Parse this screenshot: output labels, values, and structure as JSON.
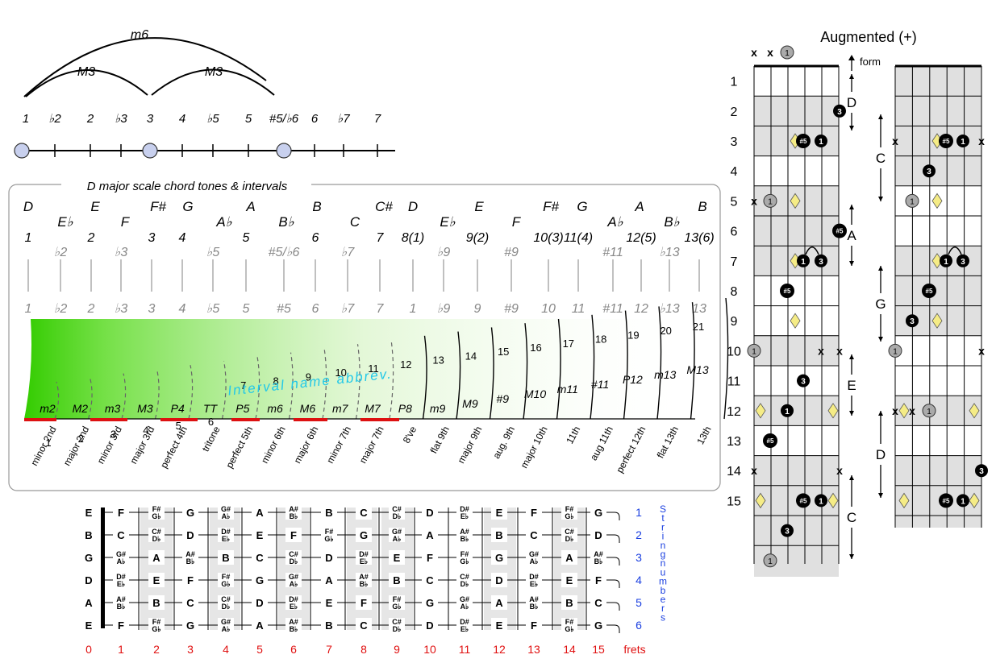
{
  "arcs": {
    "large": "m6",
    "left": "M3",
    "right": "M3"
  },
  "degree_line": {
    "labels": [
      "1",
      "♭2",
      "2",
      "♭3",
      "3",
      "4",
      "♭5",
      "5",
      "#5/♭6",
      "6",
      "♭7",
      "7"
    ],
    "marked": [
      "1",
      "3",
      "#5/♭6"
    ]
  },
  "scale_panel": {
    "title": "D major scale chord tones & intervals",
    "notes_top": [
      "D",
      "E♭",
      "E",
      "F",
      "F#",
      "G",
      "A♭",
      "A",
      "B♭",
      "B",
      "C",
      "C#",
      "D",
      "E♭",
      "E",
      "F",
      "F#",
      "G",
      "A♭",
      "A",
      "B♭",
      "B"
    ],
    "degrees_main": [
      "1",
      "♭2",
      "2",
      "♭3",
      "3",
      "4",
      "♭5",
      "5",
      "#5/♭6",
      "6",
      "♭7",
      "7",
      "8(1)",
      "♭9",
      "9(2)",
      "#9",
      "10(3)",
      "11(4)",
      "#11",
      "12(5)",
      "♭13",
      "13(6)"
    ],
    "degrees_row": [
      "1",
      "♭2",
      "2",
      "♭3",
      "3",
      "4",
      "♭5",
      "5",
      "#5",
      "6",
      "♭7",
      "7",
      "1",
      "♭9",
      "9",
      "#9",
      "10",
      "11",
      "#11",
      "12",
      "♭13",
      "13"
    ],
    "semitones": [
      "1",
      "2",
      "3",
      "4",
      "5",
      "6",
      "7",
      "8",
      "9",
      "10",
      "11",
      "12",
      "13",
      "14",
      "15",
      "16",
      "17",
      "18",
      "19",
      "20",
      "21"
    ],
    "abbrevs": [
      "m2",
      "M2",
      "m3",
      "M3",
      "P4",
      "TT",
      "P5",
      "m6",
      "M6",
      "m7",
      "M7",
      "P8",
      "m9",
      "M9",
      "#9",
      "M10",
      "m11",
      "#11",
      "P12",
      "m13",
      "M13"
    ],
    "names": [
      "minor 2nd",
      "major 2nd",
      "minor 3rd",
      "major 3rd",
      "perfect 4th",
      "tritone",
      "perfect 5th",
      "minor 6th",
      "major 6th",
      "minor 7th",
      "major 7th",
      "8've",
      "flat 9th",
      "major 9th",
      "aug. 9th",
      "major 10th",
      "11th",
      "aug 11th",
      "perfect 12th",
      "flat 13th",
      "13th"
    ],
    "watermark": "Interval name abbrev.",
    "gradient_color": "#33cc00",
    "underline_color": "#dd1111"
  },
  "fretboard": {
    "open_strings": [
      "E",
      "B",
      "G",
      "D",
      "A",
      "E"
    ],
    "rows": [
      [
        "F",
        "F#/G♭",
        "G",
        "G#/A♭",
        "A",
        "A#/B♭",
        "B",
        "C",
        "C#/D♭",
        "D",
        "D#/E♭",
        "E",
        "F",
        "F#/G♭",
        "G"
      ],
      [
        "C",
        "C#/D♭",
        "D",
        "D#/E♭",
        "E",
        "F",
        "F#/G♭",
        "G",
        "G#/A♭",
        "A",
        "A#/B♭",
        "B",
        "C",
        "C#/D♭",
        "D"
      ],
      [
        "G#/A♭",
        "A",
        "A#/B♭",
        "B",
        "C",
        "C#/D♭",
        "D",
        "D#/E♭",
        "E",
        "F",
        "F#/G♭",
        "G",
        "G#/A♭",
        "A",
        "A#/B♭"
      ],
      [
        "D#/E♭",
        "E",
        "F",
        "F#/G♭",
        "G",
        "G#/A♭",
        "A",
        "A#/B♭",
        "B",
        "C",
        "C#/D♭",
        "D",
        "D#/E♭",
        "E",
        "F"
      ],
      [
        "A#/B♭",
        "B",
        "C",
        "C#/D♭",
        "D",
        "D#/E♭",
        "E",
        "F",
        "F#/G♭",
        "G",
        "G#/A♭",
        "A",
        "A#/B♭",
        "B",
        "C"
      ],
      [
        "F",
        "F#/G♭",
        "G",
        "G#/A♭",
        "A",
        "A#/B♭",
        "B",
        "C",
        "C#/D♭",
        "D",
        "D#/E♭",
        "E",
        "F",
        "F#/G♭",
        "G"
      ]
    ],
    "string_numbers": [
      "1",
      "2",
      "3",
      "4",
      "5",
      "6"
    ],
    "string_numbers_label": "String numbers",
    "fret_numbers": [
      "0",
      "1",
      "2",
      "3",
      "4",
      "5",
      "6",
      "7",
      "8",
      "9",
      "10",
      "11",
      "12",
      "13",
      "14",
      "15"
    ],
    "frets_label": "frets",
    "blue": "#1a3fe0",
    "red": "#e01010"
  },
  "chord_chart": {
    "title": "Augmented (+)",
    "form_label": "form",
    "fret_labels": [
      "1",
      "2",
      "3",
      "4",
      "5",
      "6",
      "7",
      "8",
      "9",
      "10",
      "11",
      "12",
      "13",
      "14",
      "15"
    ],
    "left_forms": [
      "D",
      "A",
      "E",
      "C"
    ],
    "right_forms": [
      "C",
      "G",
      "D"
    ],
    "mute": "x",
    "root": "1",
    "third": "3",
    "sharp5": "#5"
  }
}
